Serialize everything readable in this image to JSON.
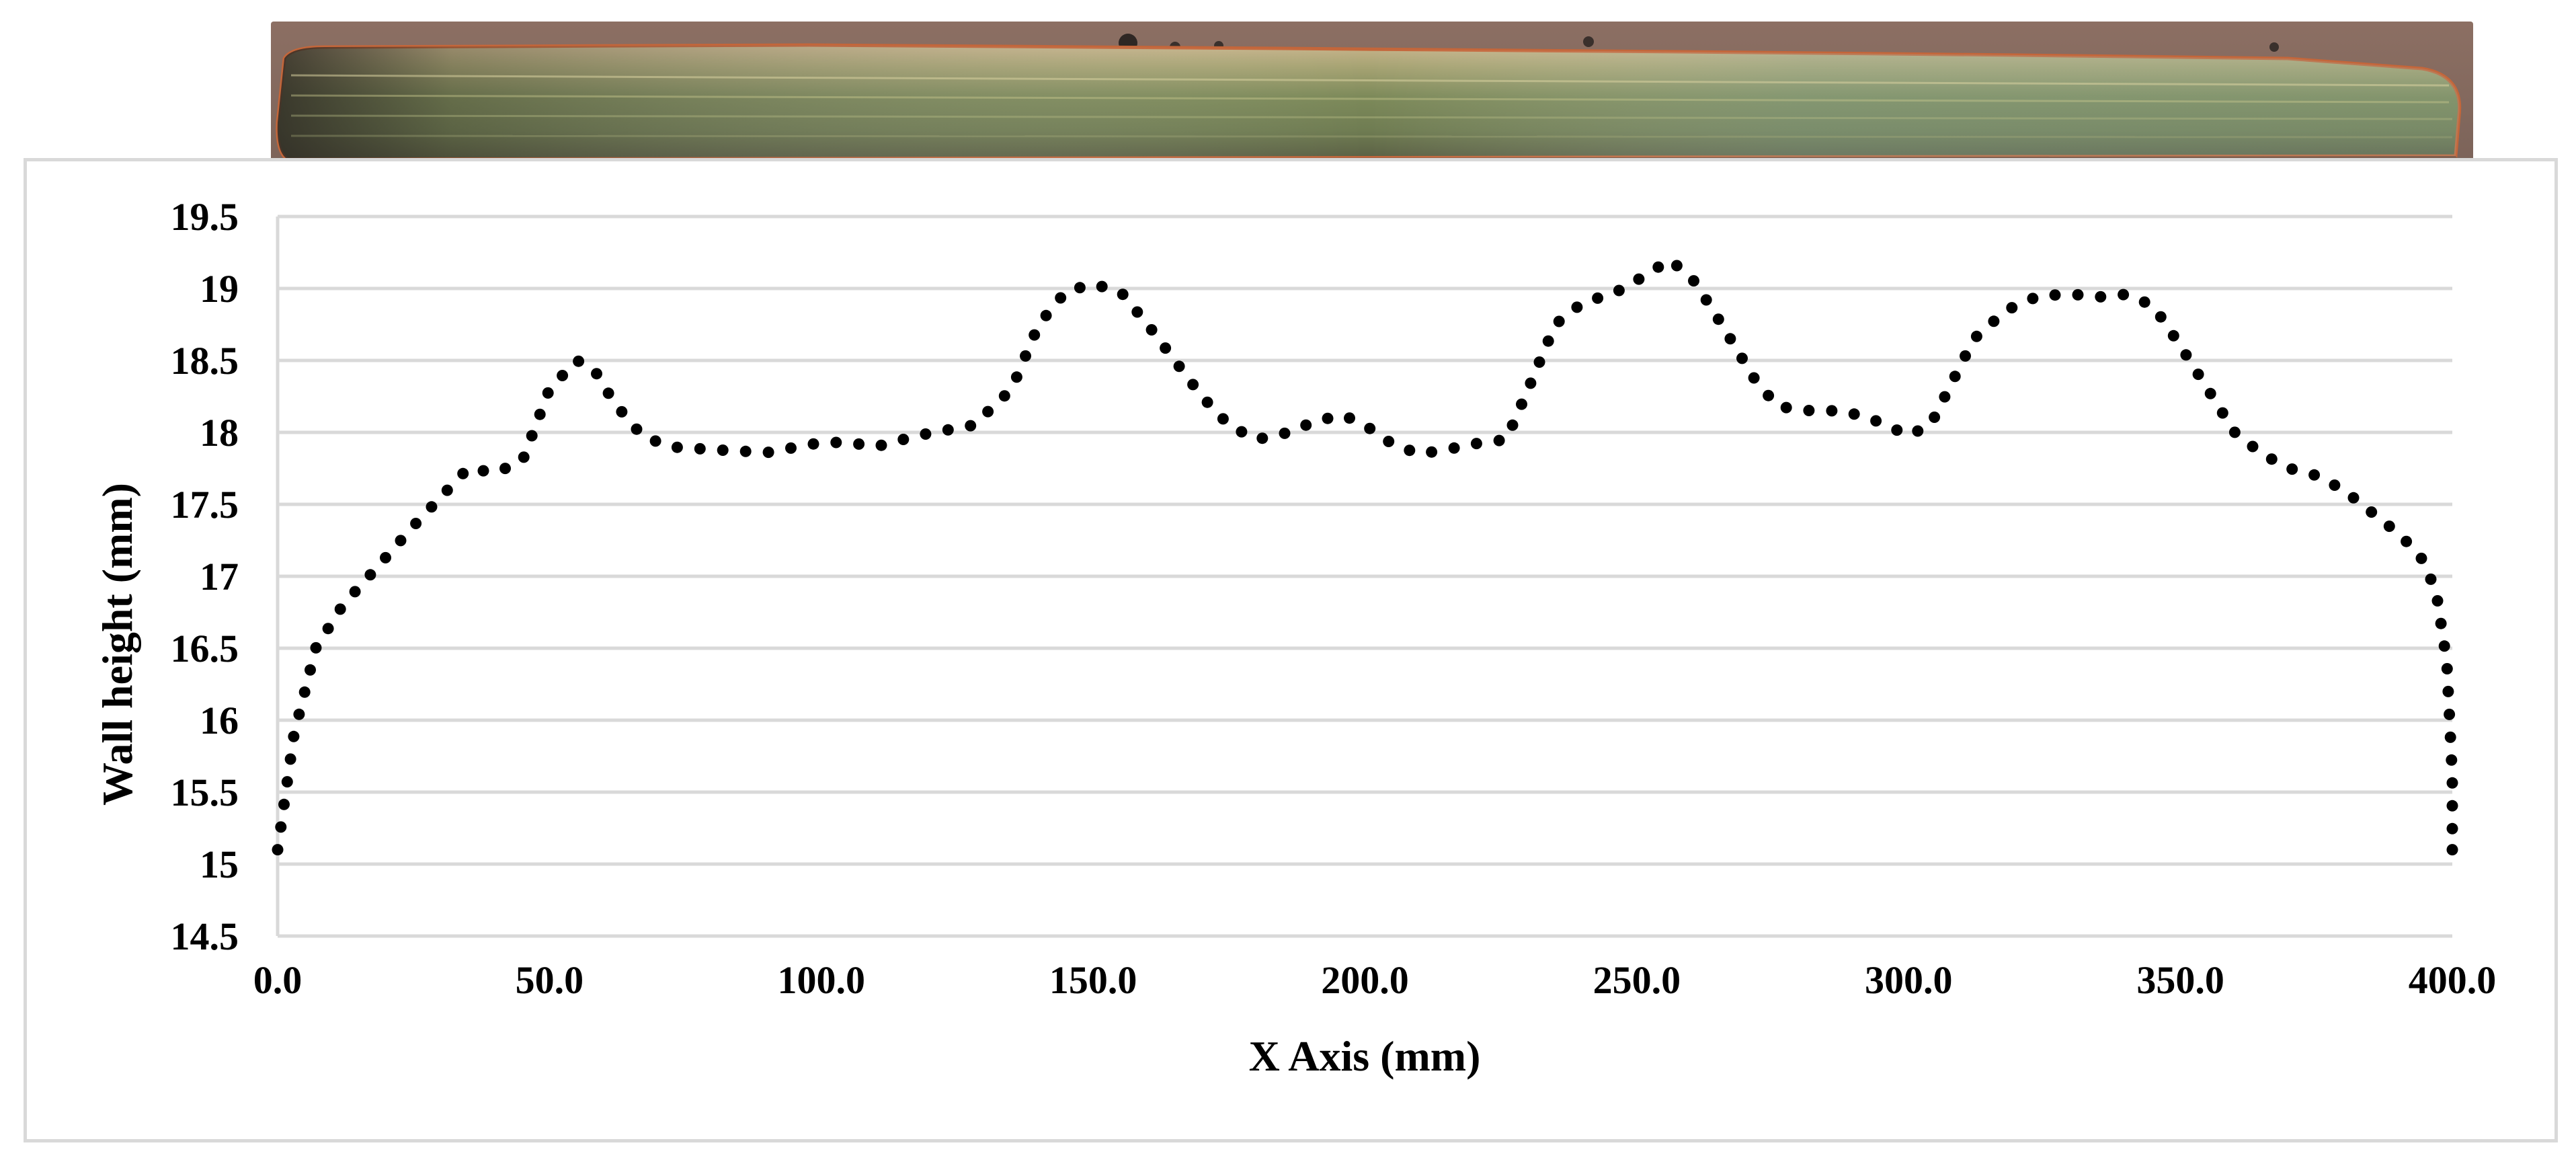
{
  "chart_data": {
    "type": "scatter",
    "xlabel": "X Axis (mm)",
    "ylabel": "Wall height (mm)",
    "xlim": [
      0,
      400
    ],
    "ylim": [
      14.5,
      19.5
    ],
    "xticks": [
      0,
      50,
      100,
      150,
      200,
      250,
      300,
      350,
      400
    ],
    "xtick_labels": [
      "0.0",
      "50.0",
      "100.0",
      "150.0",
      "200.0",
      "250.0",
      "300.0",
      "350.0",
      "400.0"
    ],
    "yticks": [
      14.5,
      15,
      15.5,
      16,
      16.5,
      17,
      17.5,
      18,
      18.5,
      19,
      19.5
    ],
    "ytick_labels": [
      "14.5",
      "15",
      "15.5",
      "16",
      "16.5",
      "17",
      "17.5",
      "18",
      "18.5",
      "19",
      "19.5"
    ],
    "grid": "horizontal",
    "legend": "none",
    "marker_color": "#000000",
    "grid_color": "#d9d9d9",
    "series": [
      {
        "points": [
          [
            0,
            15.1
          ],
          [
            3,
            15.9
          ],
          [
            7,
            16.5
          ],
          [
            12,
            16.8
          ],
          [
            18,
            17.05
          ],
          [
            25,
            17.35
          ],
          [
            30,
            17.55
          ],
          [
            35,
            17.75
          ],
          [
            40,
            17.72
          ],
          [
            45,
            17.8
          ],
          [
            50,
            18.3
          ],
          [
            55,
            18.5
          ],
          [
            58,
            18.45
          ],
          [
            62,
            18.2
          ],
          [
            67,
            17.98
          ],
          [
            72,
            17.9
          ],
          [
            80,
            17.88
          ],
          [
            90,
            17.86
          ],
          [
            100,
            17.93
          ],
          [
            105,
            17.93
          ],
          [
            110,
            17.9
          ],
          [
            118,
            17.98
          ],
          [
            128,
            18.05
          ],
          [
            135,
            18.3
          ],
          [
            140,
            18.75
          ],
          [
            145,
            18.98
          ],
          [
            150,
            19.03
          ],
          [
            155,
            18.98
          ],
          [
            160,
            18.75
          ],
          [
            165,
            18.5
          ],
          [
            170,
            18.25
          ],
          [
            175,
            18.05
          ],
          [
            180,
            17.95
          ],
          [
            186,
            18.0
          ],
          [
            191,
            18.08
          ],
          [
            196,
            18.12
          ],
          [
            200,
            18.05
          ],
          [
            205,
            17.92
          ],
          [
            210,
            17.85
          ],
          [
            215,
            17.88
          ],
          [
            220,
            17.92
          ],
          [
            226,
            17.95
          ],
          [
            230,
            18.3
          ],
          [
            235,
            18.75
          ],
          [
            240,
            18.9
          ],
          [
            246,
            18.97
          ],
          [
            252,
            19.1
          ],
          [
            256,
            19.2
          ],
          [
            260,
            19.08
          ],
          [
            264,
            18.85
          ],
          [
            268,
            18.6
          ],
          [
            272,
            18.35
          ],
          [
            276,
            18.18
          ],
          [
            282,
            18.15
          ],
          [
            288,
            18.15
          ],
          [
            294,
            18.08
          ],
          [
            300,
            17.98
          ],
          [
            304,
            18.05
          ],
          [
            308,
            18.35
          ],
          [
            312,
            18.65
          ],
          [
            318,
            18.85
          ],
          [
            324,
            18.95
          ],
          [
            330,
            18.96
          ],
          [
            336,
            18.94
          ],
          [
            340,
            18.96
          ],
          [
            345,
            18.88
          ],
          [
            350,
            18.6
          ],
          [
            355,
            18.3
          ],
          [
            360,
            18.0
          ],
          [
            365,
            17.85
          ],
          [
            370,
            17.75
          ],
          [
            375,
            17.7
          ],
          [
            380,
            17.6
          ],
          [
            385,
            17.45
          ],
          [
            390,
            17.3
          ],
          [
            394,
            17.15
          ],
          [
            397,
            16.9
          ],
          [
            399,
            16.4
          ],
          [
            400,
            15.6
          ],
          [
            400,
            15.1
          ]
        ]
      }
    ]
  }
}
